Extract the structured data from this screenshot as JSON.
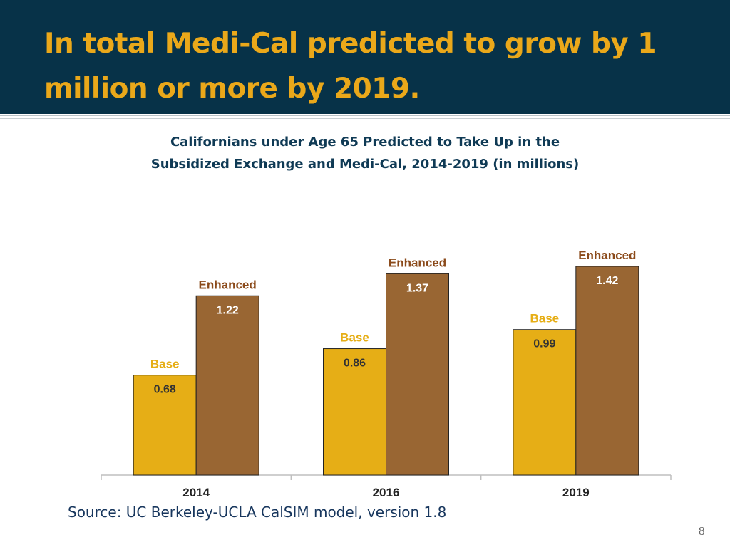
{
  "slide": {
    "title": "In total Medi-Cal predicted to grow by 1 million or more by 2019.",
    "source": "Source: UC Berkeley-UCLA CalSIM model, version 1.8",
    "page_number": "8"
  },
  "colors": {
    "header_bg": "#073248",
    "title_text": "#eaa81a",
    "base": "#e6ae16",
    "enhanced": "#996633",
    "base_label": "#e6ae16",
    "enhanced_label": "#8b4a1a",
    "value_text": "#333333"
  },
  "chart_data": {
    "type": "bar",
    "title_lines": [
      "Californians under Age 65 Predicted to Take Up in the",
      "Subsidized Exchange and Medi-Cal, 2014-2019 (in millions)"
    ],
    "categories": [
      "2014",
      "2016",
      "2019"
    ],
    "series": [
      {
        "name": "Base",
        "values": [
          0.68,
          0.86,
          0.99
        ]
      },
      {
        "name": "Enhanced",
        "values": [
          1.22,
          1.37,
          1.42
        ]
      }
    ],
    "value_labels": {
      "Base": [
        "0.68",
        "0.86",
        "0.99"
      ],
      "Enhanced": [
        "1.22",
        "1.37",
        "1.42"
      ]
    },
    "xlabel": "",
    "ylabel": "",
    "ylim": [
      0,
      1.42
    ],
    "grid": false,
    "legend": "none"
  }
}
